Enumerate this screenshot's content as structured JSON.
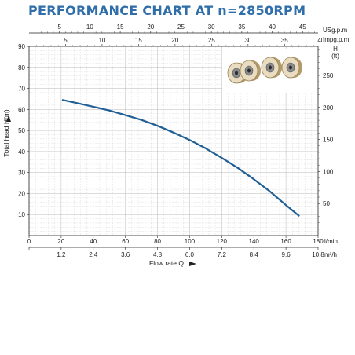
{
  "title": "PERFORMANCE CHART AT n=2850RPM",
  "chart_data": {
    "type": "line",
    "title": "PERFORMANCE CHART AT n=2850RPM",
    "xlabel": "Flow rate Q",
    "ylabel": "Total head H(m)",
    "xlim": [
      0,
      180
    ],
    "ylim": [
      0,
      90
    ],
    "x_unit": "l/min",
    "grid": true,
    "series": [
      {
        "x": [
          21,
          30,
          40,
          50,
          60,
          70,
          80,
          90,
          100,
          110,
          120,
          130,
          140,
          150,
          160,
          168
        ],
        "y": [
          64.5,
          63.0,
          61.3,
          59.5,
          57.3,
          55.0,
          52.2,
          49.0,
          45.5,
          41.5,
          37.0,
          32.2,
          26.8,
          21.0,
          14.5,
          9.5
        ]
      }
    ],
    "color": "#1f5f95",
    "x_ticks_lmin": [
      "0",
      "20",
      "40",
      "60",
      "80",
      "100",
      "120",
      "140",
      "160",
      "180"
    ],
    "x_ticks_m3h": [
      "0",
      "1.2",
      "2.4",
      "3.6",
      "4.8",
      "6.0",
      "7.2",
      "8.4",
      "9.6",
      "10.8"
    ],
    "m3h_unit": "m³/h",
    "top_usgpm_ticks": [
      "5",
      "10",
      "15",
      "20",
      "25",
      "30",
      "35",
      "40",
      "45"
    ],
    "top_usgpm_unit": "USg.p.m",
    "top_impgpm_ticks": [
      "5",
      "10",
      "15",
      "20",
      "25",
      "30",
      "35",
      "40"
    ],
    "top_impgpm_unit": "Impg.p.m",
    "y_ticks_m": [
      "10",
      "20",
      "30",
      "40",
      "50",
      "60",
      "70",
      "80",
      "90"
    ],
    "y_ticks_ft": [
      "50",
      "100",
      "150",
      "200",
      "250"
    ],
    "right_axis_label": "H",
    "right_axis_unit": "(ft)"
  }
}
